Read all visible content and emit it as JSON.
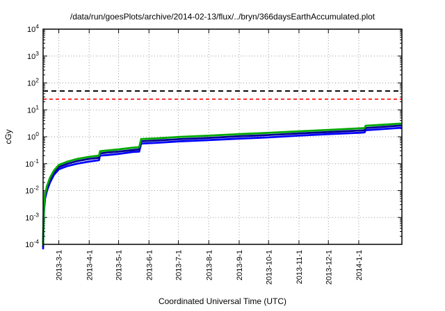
{
  "chart": {
    "title": "/data/run/goesPlots/archive/2014-02-13/flux/../bryn/366daysEarthAccumulated.plot",
    "xlabel": "Coordinated Universal Time (UTC)",
    "ylabel": "cGy"
  },
  "chart_data": {
    "type": "line",
    "y_scale": "log",
    "x_range": [
      "2013-02-13",
      "2014-02-14"
    ],
    "y_range_exponents": [
      -4,
      4
    ],
    "grid": true,
    "legend": "none",
    "x_ticks": [
      {
        "date": "2013-03-01",
        "label": "2013-3-1"
      },
      {
        "date": "2013-04-01",
        "label": "2013-4-1"
      },
      {
        "date": "2013-05-01",
        "label": "2013-5-1"
      },
      {
        "date": "2013-06-01",
        "label": "2013-6-1"
      },
      {
        "date": "2013-07-01",
        "label": "2013-7-1"
      },
      {
        "date": "2013-08-01",
        "label": "2013-8-1"
      },
      {
        "date": "2013-09-01",
        "label": "2013-9-1"
      },
      {
        "date": "2013-10-01",
        "label": "2013-10-1"
      },
      {
        "date": "2013-11-01",
        "label": "2013-11-1"
      },
      {
        "date": "2013-12-01",
        "label": "2013-12-1"
      },
      {
        "date": "2014-01-01",
        "label": "2014-1-1"
      }
    ],
    "y_tick_exponents": [
      -4,
      -3,
      -2,
      -1,
      0,
      1,
      2,
      3,
      4
    ],
    "thresholds": [
      {
        "name": "upper-limit-dashed",
        "value": 50,
        "color": "#000000"
      },
      {
        "name": "warning-limit-dashed",
        "value": 25,
        "color": "#ff0000"
      }
    ],
    "series": [
      {
        "name": "accumulated-dose-blue",
        "color": "#0000ff",
        "points": [
          [
            "2013-02-13T00:00",
            7e-05
          ],
          [
            "2013-02-13T08:00",
            0.00055
          ],
          [
            "2013-02-14",
            0.002
          ],
          [
            "2013-02-15",
            0.005
          ],
          [
            "2013-02-17",
            0.01
          ],
          [
            "2013-02-20",
            0.02
          ],
          [
            "2013-02-24",
            0.038
          ],
          [
            "2013-03-01",
            0.062
          ],
          [
            "2013-03-10",
            0.082
          ],
          [
            "2013-03-20",
            0.1
          ],
          [
            "2013-04-01",
            0.12
          ],
          [
            "2013-04-11",
            0.135
          ],
          [
            "2013-04-12",
            0.2
          ],
          [
            "2013-04-20",
            0.21
          ],
          [
            "2013-05-01",
            0.23
          ],
          [
            "2013-05-15",
            0.27
          ],
          [
            "2013-05-22",
            0.28
          ],
          [
            "2013-05-24",
            0.56
          ],
          [
            "2013-06-10",
            0.6
          ],
          [
            "2013-07-01",
            0.67
          ],
          [
            "2013-08-01",
            0.75
          ],
          [
            "2013-09-01",
            0.85
          ],
          [
            "2013-10-01",
            0.95
          ],
          [
            "2013-11-01",
            1.1
          ],
          [
            "2013-12-01",
            1.25
          ],
          [
            "2014-01-01",
            1.4
          ],
          [
            "2014-01-07",
            1.45
          ],
          [
            "2014-01-08",
            1.75
          ],
          [
            "2014-02-13",
            2.15
          ]
        ]
      },
      {
        "name": "accumulated-dose-navy",
        "color": "#000090",
        "points": [
          [
            "2013-02-13T00:00",
            8.5e-05
          ],
          [
            "2013-02-13T08:00",
            0.0007
          ],
          [
            "2013-02-14",
            0.0025
          ],
          [
            "2013-02-15",
            0.006
          ],
          [
            "2013-02-17",
            0.0125
          ],
          [
            "2013-02-20",
            0.025
          ],
          [
            "2013-02-24",
            0.046
          ],
          [
            "2013-03-01",
            0.075
          ],
          [
            "2013-03-10",
            0.1
          ],
          [
            "2013-03-20",
            0.125
          ],
          [
            "2013-04-01",
            0.15
          ],
          [
            "2013-04-11",
            0.165
          ],
          [
            "2013-04-12",
            0.24
          ],
          [
            "2013-04-20",
            0.26
          ],
          [
            "2013-05-01",
            0.28
          ],
          [
            "2013-05-15",
            0.32
          ],
          [
            "2013-05-22",
            0.34
          ],
          [
            "2013-05-24",
            0.68
          ],
          [
            "2013-06-10",
            0.73
          ],
          [
            "2013-07-01",
            0.81
          ],
          [
            "2013-08-01",
            0.91
          ],
          [
            "2013-09-01",
            1.04
          ],
          [
            "2013-10-01",
            1.16
          ],
          [
            "2013-11-01",
            1.33
          ],
          [
            "2013-12-01",
            1.5
          ],
          [
            "2014-01-01",
            1.7
          ],
          [
            "2014-01-07",
            1.75
          ],
          [
            "2014-01-08",
            2.1
          ],
          [
            "2014-02-13",
            2.6
          ]
        ]
      },
      {
        "name": "accumulated-dose-green",
        "color": "#00a800",
        "points": [
          [
            "2013-02-13T00:00",
            0.0001
          ],
          [
            "2013-02-13T08:00",
            0.0008
          ],
          [
            "2013-02-14",
            0.003
          ],
          [
            "2013-02-15",
            0.007
          ],
          [
            "2013-02-17",
            0.015
          ],
          [
            "2013-02-20",
            0.03
          ],
          [
            "2013-02-24",
            0.055
          ],
          [
            "2013-03-01",
            0.09
          ],
          [
            "2013-03-10",
            0.12
          ],
          [
            "2013-03-20",
            0.15
          ],
          [
            "2013-04-01",
            0.18
          ],
          [
            "2013-04-11",
            0.2
          ],
          [
            "2013-04-12",
            0.29
          ],
          [
            "2013-04-20",
            0.31
          ],
          [
            "2013-05-01",
            0.34
          ],
          [
            "2013-05-15",
            0.39
          ],
          [
            "2013-05-22",
            0.41
          ],
          [
            "2013-05-24",
            0.82
          ],
          [
            "2013-06-10",
            0.88
          ],
          [
            "2013-07-01",
            0.98
          ],
          [
            "2013-08-01",
            1.1
          ],
          [
            "2013-09-01",
            1.25
          ],
          [
            "2013-10-01",
            1.4
          ],
          [
            "2013-11-01",
            1.6
          ],
          [
            "2013-12-01",
            1.8
          ],
          [
            "2014-01-01",
            2.05
          ],
          [
            "2014-01-07",
            2.1
          ],
          [
            "2014-01-08",
            2.55
          ],
          [
            "2014-02-13",
            3.1
          ]
        ]
      }
    ]
  },
  "colors": {
    "frame": "#000000",
    "grid": "#9a9a9a",
    "background": "#ffffff"
  }
}
